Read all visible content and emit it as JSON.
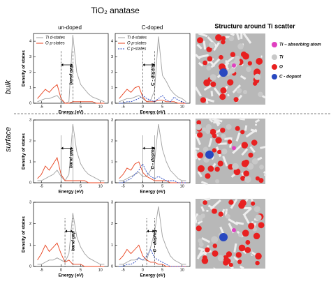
{
  "title": "TiO₂ anatase",
  "column_titles": [
    "un-doped",
    "C-doped"
  ],
  "row_labels": [
    "bulk",
    "surface"
  ],
  "structure": {
    "title": "Structure around Ti scatter",
    "legend": [
      {
        "label": "Ti – absorbing atom",
        "color": "#e040c0"
      },
      {
        "label": "Ti",
        "color": "#c8c8c8"
      },
      {
        "label": "O",
        "color": "#e82020"
      },
      {
        "label": "C - dopant",
        "color": "#2848c0"
      }
    ]
  },
  "chart_data": [
    {
      "type": "line",
      "xlabel": "Energy (eV)",
      "ylabel": "Density of states",
      "legend": true,
      "x": [
        -6,
        -5,
        -4,
        -3,
        -2,
        -1,
        0,
        1,
        2,
        3,
        4,
        5,
        6,
        7,
        8,
        9,
        10,
        11
      ],
      "xlim": [
        -7,
        12
      ],
      "xticks": [
        -5,
        0,
        5,
        10
      ],
      "ylim": [
        0,
        4.5
      ],
      "yticks": [
        0,
        1,
        2,
        3,
        4
      ],
      "annotation": {
        "text": "band gap",
        "x": [
          0,
          3
        ]
      },
      "series": [
        {
          "name": "Ti d-states",
          "color": "#a0a0a0",
          "values": [
            0.1,
            0.2,
            0.3,
            0.3,
            0.4,
            0.5,
            0.2,
            0,
            0.1,
            4.4,
            2.0,
            1.2,
            0.9,
            0.6,
            0.4,
            0.3,
            0.2,
            0.1
          ]
        },
        {
          "name": "O p-states",
          "color": "#e8401c",
          "values": [
            0.3,
            0.6,
            0.9,
            0.7,
            1.0,
            1.2,
            0.3,
            0,
            0,
            0.1,
            0.1,
            0.1,
            0.1,
            0.1,
            0.1,
            0,
            0,
            0
          ]
        }
      ]
    },
    {
      "type": "line",
      "xlabel": "Energy (eV)",
      "legend": true,
      "x": [
        -6,
        -5,
        -4,
        -3,
        -2,
        -1,
        0,
        1,
        2,
        3,
        4,
        5,
        6,
        7,
        8,
        9,
        10,
        11
      ],
      "xlim": [
        -7,
        12
      ],
      "xticks": [
        -5,
        0,
        5,
        10
      ],
      "ylim": [
        0,
        4.5
      ],
      "yticks": [
        0,
        1,
        2,
        3,
        4
      ],
      "annotation": {
        "text": "C - doping",
        "x": [
          0,
          3
        ]
      },
      "series": [
        {
          "name": "Ti d-states",
          "color": "#a0a0a0",
          "values": [
            0.1,
            0.2,
            0.3,
            0.3,
            0.4,
            0.5,
            0.3,
            0.1,
            0.2,
            0.8,
            4.3,
            1.8,
            1.4,
            0.9,
            0.6,
            0.4,
            0.3,
            0.1
          ]
        },
        {
          "name": "O p-states",
          "color": "#e8401c",
          "values": [
            0.3,
            0.6,
            0.9,
            0.7,
            1.0,
            1.1,
            0.4,
            0.1,
            0.1,
            0.1,
            0.2,
            0.2,
            0.1,
            0.1,
            0.1,
            0,
            0,
            0
          ]
        },
        {
          "name": "C p-states",
          "color": "#2040c0",
          "dash": true,
          "values": [
            0,
            0,
            0.1,
            0.1,
            0.2,
            0.3,
            0.5,
            0.3,
            0.2,
            0.1,
            0.3,
            0.5,
            0.2,
            0.1,
            0.4,
            0.2,
            0.1,
            0
          ]
        }
      ]
    },
    {
      "type": "line",
      "xlabel": "Energy (eV)",
      "ylabel": "Density of states",
      "legend": false,
      "x": [
        -6,
        -5,
        -4,
        -3,
        -2,
        -1,
        0,
        1,
        2,
        3,
        4,
        5,
        6,
        7,
        8,
        9,
        10,
        11
      ],
      "xlim": [
        -7,
        12
      ],
      "xticks": [
        -5,
        0,
        5,
        10
      ],
      "ylim": [
        0,
        3
      ],
      "yticks": [
        0,
        1,
        2,
        3
      ],
      "annotation": {
        "text": "band gap",
        "x": [
          0,
          3
        ]
      },
      "series": [
        {
          "color": "#a0a0a0",
          "values": [
            0.1,
            0.1,
            0.2,
            0.3,
            0.4,
            0.6,
            0.3,
            0.1,
            0.4,
            2.8,
            1.5,
            0.9,
            0.6,
            0.4,
            0.3,
            0.2,
            0.1,
            0.1
          ]
        },
        {
          "color": "#e8401c",
          "values": [
            0.2,
            0.4,
            0.8,
            0.6,
            0.9,
            1.2,
            0.4,
            0.1,
            0.1,
            0.1,
            0.1,
            0.1,
            0.1,
            0,
            0,
            0,
            0,
            0
          ]
        }
      ]
    },
    {
      "type": "line",
      "xlabel": "Energy (eV)",
      "legend": false,
      "x": [
        -6,
        -5,
        -4,
        -3,
        -2,
        -1,
        0,
        1,
        2,
        3,
        4,
        5,
        6,
        7,
        8,
        9,
        10,
        11
      ],
      "xlim": [
        -7,
        12
      ],
      "xticks": [
        -5,
        0,
        5,
        10
      ],
      "ylim": [
        0,
        3
      ],
      "yticks": [
        0,
        1,
        2,
        3
      ],
      "annotation": {
        "text": "C - doping",
        "x": [
          0,
          3
        ]
      },
      "series": [
        {
          "color": "#a0a0a0",
          "values": [
            0.1,
            0.1,
            0.2,
            0.3,
            0.4,
            0.5,
            0.3,
            0.3,
            0.6,
            1.0,
            2.8,
            1.6,
            1.0,
            0.6,
            0.4,
            0.2,
            0.1,
            0.1
          ]
        },
        {
          "color": "#e8401c",
          "values": [
            0.2,
            0.4,
            0.7,
            0.6,
            0.9,
            1.0,
            0.5,
            0.3,
            0.2,
            0.1,
            0.1,
            0.1,
            0.1,
            0,
            0,
            0,
            0,
            0
          ]
        },
        {
          "color": "#2040c0",
          "dash": true,
          "values": [
            0,
            0,
            0.1,
            0.2,
            0.4,
            0.6,
            0.9,
            0.5,
            0.3,
            0.2,
            0.3,
            0.2,
            0.1,
            0.1,
            0.1,
            0,
            0,
            0
          ]
        }
      ]
    },
    {
      "type": "line",
      "xlabel": "Energy (eV)",
      "ylabel": "Density of states",
      "legend": false,
      "x": [
        -6,
        -5,
        -4,
        -3,
        -2,
        -1,
        0,
        1,
        2,
        3,
        4,
        5,
        6,
        7,
        8,
        9,
        10,
        11
      ],
      "xlim": [
        -7,
        12
      ],
      "xticks": [
        -5,
        0,
        5,
        10
      ],
      "ylim": [
        0,
        3
      ],
      "yticks": [
        0,
        1,
        2,
        3
      ],
      "annotation": {
        "text": "band gap",
        "x": [
          1,
          3
        ]
      },
      "series": [
        {
          "color": "#a0a0a0",
          "values": [
            0.1,
            0.1,
            0.2,
            0.3,
            0.3,
            0.4,
            0.3,
            0.2,
            0.6,
            2.5,
            1.4,
            0.9,
            0.6,
            0.4,
            0.3,
            0.2,
            0.1,
            0.1
          ]
        },
        {
          "color": "#e8401c",
          "values": [
            0.3,
            0.6,
            1.0,
            0.7,
            0.9,
            1.1,
            0.6,
            0.2,
            0.3,
            0.1,
            0.1,
            0.1,
            0,
            0,
            0,
            0,
            0,
            0
          ]
        }
      ]
    },
    {
      "type": "line",
      "xlabel": "Energy (eV)",
      "legend": false,
      "x": [
        -6,
        -5,
        -4,
        -3,
        -2,
        -1,
        0,
        1,
        2,
        3,
        4,
        5,
        6,
        7,
        8,
        9,
        10,
        11
      ],
      "xlim": [
        -7,
        12
      ],
      "xticks": [
        -5,
        0,
        5,
        10
      ],
      "ylim": [
        0,
        3
      ],
      "yticks": [
        0,
        1,
        2,
        3
      ],
      "annotation": {
        "text": "C - doping",
        "x": [
          1,
          3
        ]
      },
      "series": [
        {
          "color": "#a0a0a0",
          "values": [
            0.1,
            0.1,
            0.2,
            0.3,
            0.3,
            0.4,
            0.3,
            0.3,
            0.9,
            1.6,
            2.8,
            1.4,
            0.9,
            0.5,
            0.3,
            0.2,
            0.1,
            0.1
          ]
        },
        {
          "color": "#e8401c",
          "values": [
            0.3,
            0.5,
            0.8,
            0.6,
            0.8,
            1.0,
            0.5,
            0.3,
            0.2,
            0.2,
            0.1,
            0.1,
            0,
            0,
            0,
            0,
            0,
            0
          ]
        },
        {
          "color": "#2040c0",
          "dash": true,
          "values": [
            0,
            0,
            0.1,
            0.1,
            0.2,
            0.4,
            0.3,
            0.5,
            0.8,
            0.4,
            0.3,
            0.2,
            0.1,
            0,
            0,
            0,
            0,
            0
          ]
        }
      ]
    }
  ]
}
